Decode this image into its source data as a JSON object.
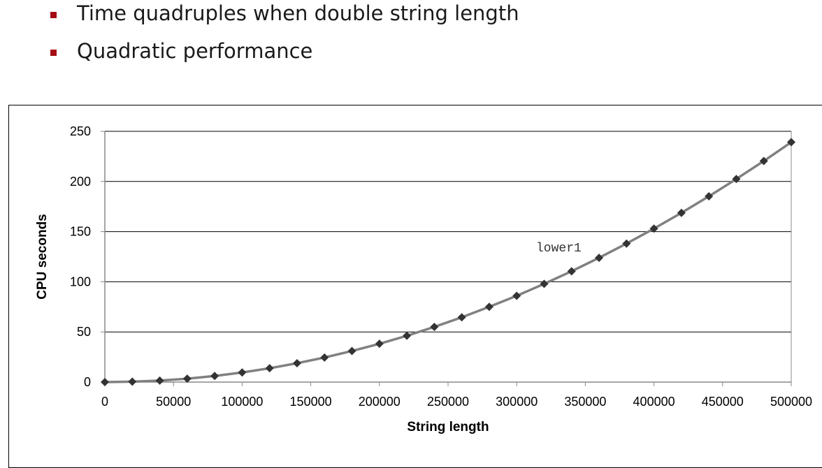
{
  "bullets": [
    {
      "text": "Time quadruples when double string length"
    },
    {
      "text": "Quadratic performance"
    }
  ],
  "colors": {
    "bullet": "#a50d14",
    "line": "#808080",
    "marker": "#333333",
    "grid": "#000000"
  },
  "chart_data": {
    "type": "line",
    "title": "",
    "xlabel": "String length",
    "ylabel": "CPU seconds",
    "xlim": [
      0,
      500000
    ],
    "ylim": [
      0,
      250
    ],
    "xticks": [
      0,
      50000,
      100000,
      150000,
      200000,
      250000,
      300000,
      350000,
      400000,
      450000,
      500000
    ],
    "yticks": [
      0,
      50,
      100,
      150,
      200,
      250
    ],
    "grid": "horizontal",
    "annotation": "lower1",
    "series": [
      {
        "name": "lower1",
        "x": [
          0,
          20000,
          40000,
          60000,
          80000,
          100000,
          120000,
          140000,
          160000,
          180000,
          200000,
          220000,
          240000,
          260000,
          280000,
          300000,
          320000,
          340000,
          360000,
          380000,
          400000,
          420000,
          440000,
          460000,
          480000,
          500000
        ],
        "y": [
          0,
          0.4,
          1.5,
          3.4,
          6.1,
          9.6,
          13.8,
          18.8,
          24.5,
          31.0,
          38.2,
          46.2,
          55.0,
          64.6,
          75.0,
          86.0,
          97.9,
          110.5,
          123.9,
          138.1,
          153.0,
          168.7,
          185.2,
          202.5,
          220.4,
          239.2
        ]
      }
    ]
  }
}
